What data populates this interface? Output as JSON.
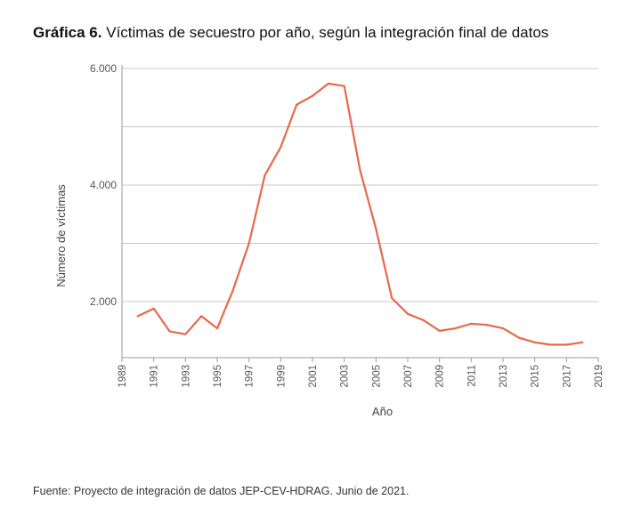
{
  "header": {
    "lead": "Gráfica 6.",
    "text": "Víctimas de secuestro por año, según la integración final de datos"
  },
  "footer": {
    "source": "Fuente: Proyecto de integración de datos JEP-CEV-HDRAG. Junio de 2021."
  },
  "chart_data": {
    "type": "line",
    "xlabel": "Año",
    "ylabel": "Número de víctimas",
    "xlim": [
      1989,
      2019
    ],
    "ylim": [
      1000,
      6000
    ],
    "yticks": [
      2000,
      4000,
      6000
    ],
    "yticklabels": [
      "2.000",
      "4.000",
      "6.000"
    ],
    "xticks": [
      1989,
      1991,
      1993,
      1995,
      1997,
      1999,
      2001,
      2003,
      2005,
      2007,
      2009,
      2011,
      2013,
      2015,
      2017,
      2019
    ],
    "grid": "horizontal",
    "color": "#e8694a",
    "series": [
      {
        "x": [
          1990,
          1991,
          1992,
          1993,
          1994,
          1995,
          1996,
          1997,
          1998,
          1999,
          2000,
          2001,
          2002,
          2003,
          2004,
          2005,
          2006,
          2007,
          2008,
          2009,
          2010,
          2011,
          2012,
          2013,
          2014,
          2015,
          2016,
          2017,
          2018
        ],
        "values": [
          1750,
          1880,
          1490,
          1440,
          1750,
          1540,
          2200,
          3000,
          4170,
          4650,
          5380,
          5530,
          5740,
          5700,
          4250,
          3250,
          2060,
          1790,
          1680,
          1500,
          1540,
          1620,
          1600,
          1540,
          1380,
          1300,
          1260,
          1260,
          1300
        ]
      }
    ]
  }
}
